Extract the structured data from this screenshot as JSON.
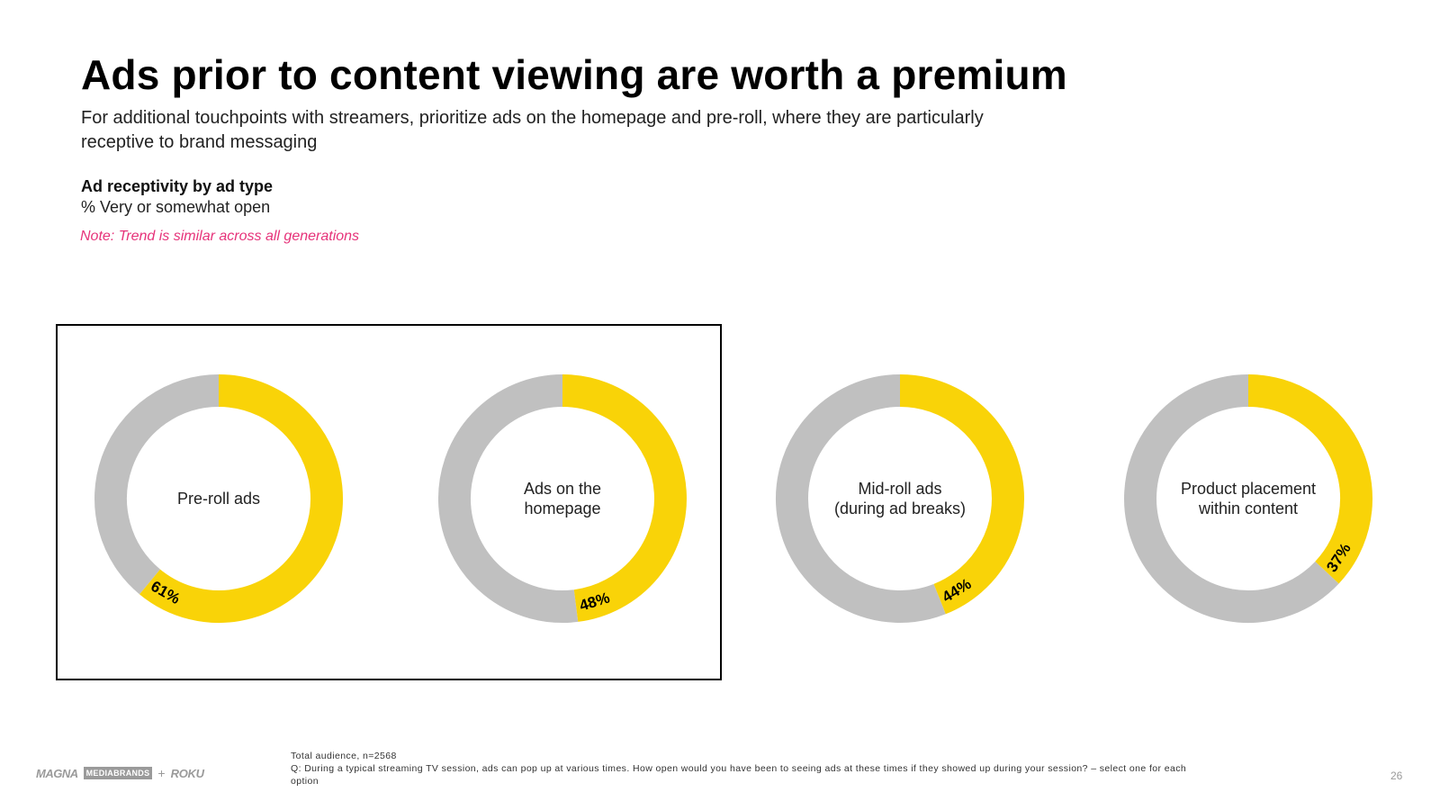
{
  "slide": {
    "title": "Ads prior to content viewing are worth a premium",
    "subtitle": "For additional touchpoints with streamers, prioritize ads on the homepage and pre-roll, where they are particularly receptive to brand messaging",
    "chart_heading": "Ad receptivity by ad type",
    "chart_subheading": "% Very or somewhat open",
    "note": "Note: Trend is similar across all generations",
    "footnote_base": "Total audience, n=2568",
    "footnote_question": "Q: During a typical streaming TV session, ads can pop up at various times. How open would you have been to seeing ads at these times if they showed up during your session? – select one for each option",
    "page_number": "26",
    "logos": {
      "magna": "MAGNA",
      "mediabrands": "MEDIABRANDS",
      "plus": "+",
      "roku": "ROKU"
    }
  },
  "colors": {
    "primary": "#f9d308",
    "remainder": "#c0c0c0",
    "note": "#e6337a"
  },
  "chart_data": {
    "type": "donut",
    "title": "Ad receptivity by ad type",
    "subtitle": "% Very or somewhat open",
    "unit": "%",
    "series": [
      {
        "values": [
          61,
          48,
          44,
          37
        ]
      }
    ],
    "categories": [
      "Pre-roll ads",
      "Ads on the homepage",
      "Mid-roll ads (during ad breaks)",
      "Product placement within content"
    ],
    "category_lines": [
      [
        "Pre-roll ads"
      ],
      [
        "Ads on the",
        "homepage"
      ],
      [
        "Mid-roll ads",
        "(during ad breaks)"
      ],
      [
        "Product placement",
        "within content"
      ]
    ],
    "value_labels": [
      "61%",
      "48%",
      "44%",
      "37%"
    ],
    "highlighted": [
      "Pre-roll ads",
      "Ads on the homepage"
    ]
  }
}
